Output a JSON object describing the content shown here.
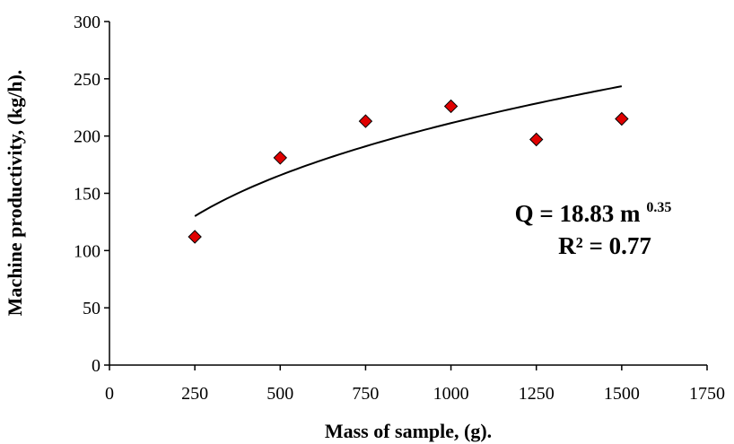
{
  "chart_data": {
    "type": "scatter",
    "xlabel": "Mass of sample, (g).",
    "ylabel": "Machine productivity, (kg/h).",
    "xlim": [
      0,
      1750
    ],
    "ylim": [
      0,
      300
    ],
    "xticks": [
      0,
      250,
      500,
      750,
      1000,
      1250,
      1500,
      1750
    ],
    "yticks": [
      0,
      50,
      100,
      150,
      200,
      250,
      300
    ],
    "grid": false,
    "legend": "none",
    "series": [
      {
        "points": [
          {
            "x": 250,
            "y": 112
          },
          {
            "x": 500,
            "y": 181
          },
          {
            "x": 750,
            "y": 213
          },
          {
            "x": 1000,
            "y": 226
          },
          {
            "x": 1250,
            "y": 197
          },
          {
            "x": 1500,
            "y": 215
          }
        ],
        "marker": "diamond",
        "color": "#e00000"
      }
    ],
    "trendline": {
      "type": "power",
      "coefficient": 18.83,
      "exponent": 0.35,
      "x_range": [
        250,
        1500
      ],
      "color": "#000000"
    },
    "annotations": {
      "equation_prefix": "Q = 18.83 m",
      "equation_exponent": "0.35",
      "r_squared": "R² = 0.77"
    }
  }
}
